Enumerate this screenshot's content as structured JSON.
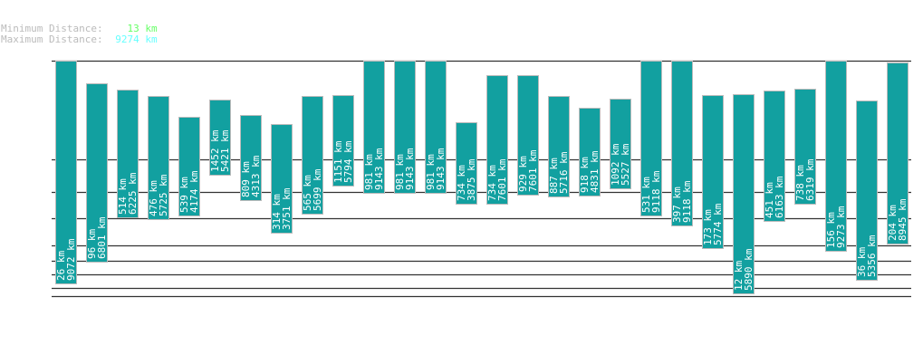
{
  "header": {
    "min_label": "Minimum Distance:",
    "min_value": "13 km",
    "max_label": "Maximum Distance:",
    "max_value": "9274 km",
    "min_color": "#66ff66",
    "max_color": "#66ffff"
  },
  "chart_data": {
    "type": "bar",
    "bar_color": "#12a0a0",
    "unit": "km",
    "grid": true,
    "series": [
      {
        "min": 26,
        "max": 9072
      },
      {
        "min": 96,
        "max": 6801
      },
      {
        "min": 514,
        "max": 6225
      },
      {
        "min": 476,
        "max": 5725
      },
      {
        "min": 539,
        "max": 4174
      },
      {
        "min": 1452,
        "max": 5421
      },
      {
        "min": 809,
        "max": 4313
      },
      {
        "min": 314,
        "max": 3751
      },
      {
        "min": 565,
        "max": 5699
      },
      {
        "min": 1151,
        "max": 5794
      },
      {
        "min": 981,
        "max": 9143
      },
      {
        "min": 981,
        "max": 9143
      },
      {
        "min": 981,
        "max": 9143
      },
      {
        "min": 734,
        "max": 3875
      },
      {
        "min": 734,
        "max": 7601
      },
      {
        "min": 929,
        "max": 7601
      },
      {
        "min": 887,
        "max": 5716
      },
      {
        "min": 918,
        "max": 4831
      },
      {
        "min": 1092,
        "max": 5527
      },
      {
        "min": 531,
        "max": 9118
      },
      {
        "min": 397,
        "max": 9118
      },
      {
        "min": 173,
        "max": 5774
      },
      {
        "min": 12,
        "max": 5890
      },
      {
        "min": 451,
        "max": 6163
      },
      {
        "min": 738,
        "max": 6319
      },
      {
        "min": 156,
        "max": 9273
      },
      {
        "min": 36,
        "max": 5356
      },
      {
        "min": 204,
        "max": 8945
      }
    ]
  }
}
